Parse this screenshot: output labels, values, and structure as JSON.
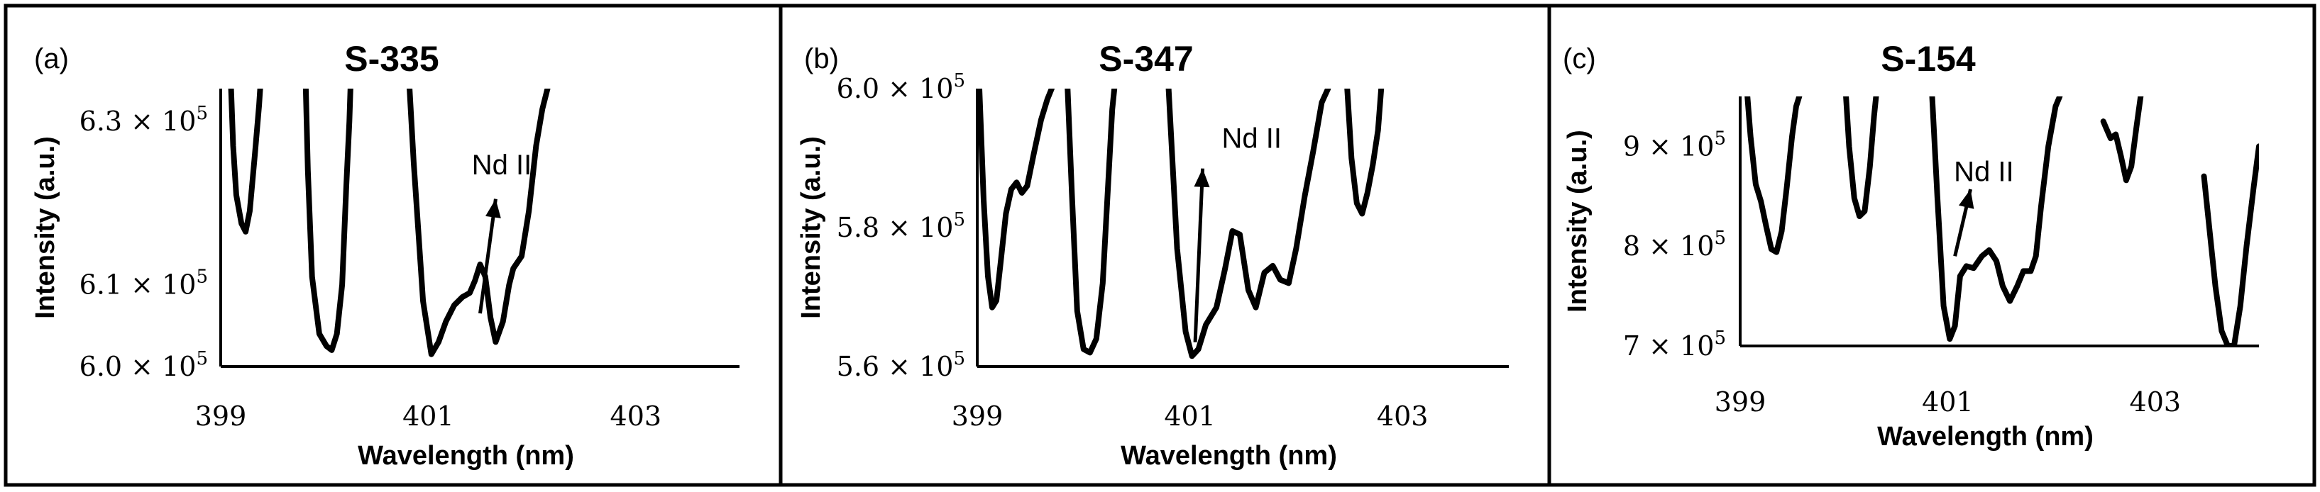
{
  "chart_data": [
    {
      "type": "line",
      "panel_label": "(a)",
      "title": "S-335",
      "xlabel": "Wavelength (nm)",
      "ylabel": "Intensity (a.u.)",
      "xlim": [
        399,
        404
      ],
      "ylim": [
        600000,
        634000
      ],
      "x_ticks": [
        "399",
        "401",
        "403"
      ],
      "x_tick_values": [
        399,
        401,
        403
      ],
      "y_ticks": [
        {
          "value": 600000,
          "mantissa": "6.0",
          "exp": "5"
        },
        {
          "value": 610000,
          "mantissa": "6.1",
          "exp": "5"
        },
        {
          "value": 630000,
          "mantissa": "6.3",
          "exp": "5"
        }
      ],
      "annotation": {
        "text": "Nd II",
        "arrow_from": [
          401.5,
          606500
        ],
        "arrow_to": [
          401.65,
          620500
        ],
        "text_at": [
          401.42,
          623500
        ]
      },
      "series": [
        {
          "x": [
            399.1,
            399.12,
            399.15,
            399.2,
            399.24,
            399.28,
            399.33,
            399.37,
            399.38
          ],
          "y": [
            634000,
            627000,
            621000,
            617500,
            616500,
            619000,
            626000,
            632000,
            634000
          ]
        },
        {
          "x": [
            399.82,
            399.84,
            399.88,
            399.95,
            400.02,
            400.07,
            400.12,
            400.17,
            400.21,
            400.24,
            400.25
          ],
          "y": [
            634000,
            624000,
            611000,
            604000,
            602500,
            602000,
            604000,
            610000,
            622000,
            630000,
            634000
          ]
        },
        {
          "x": [
            400.82,
            400.86,
            400.95,
            401.03,
            401.1,
            401.17,
            401.25,
            401.33,
            401.4,
            401.45,
            401.5,
            401.55,
            401.6,
            401.65,
            401.72,
            401.78,
            401.82,
            401.9,
            401.97,
            402.04,
            402.1,
            402.15
          ],
          "y": [
            634000,
            625000,
            608000,
            601500,
            603000,
            605500,
            607500,
            608500,
            609000,
            610500,
            612500,
            611000,
            606000,
            603000,
            605500,
            610000,
            612000,
            613500,
            619000,
            627000,
            631500,
            634000
          ]
        }
      ]
    },
    {
      "type": "line",
      "panel_label": "(b)",
      "title": "S-347",
      "xlabel": "Wavelength (nm)",
      "ylabel": "Intensity (a.u.)",
      "xlim": [
        399,
        404
      ],
      "ylim": [
        560000,
        600000
      ],
      "x_ticks": [
        "399",
        "401",
        "403"
      ],
      "x_tick_values": [
        399,
        401,
        403
      ],
      "y_ticks": [
        {
          "value": 560000,
          "mantissa": "5.6",
          "exp": "5"
        },
        {
          "value": 580000,
          "mantissa": "5.8",
          "exp": "5"
        },
        {
          "value": 600000,
          "mantissa": "6.0",
          "exp": "5"
        }
      ],
      "annotation": {
        "text": "Nd II",
        "arrow_from": [
          401.05,
          563500
        ],
        "arrow_to": [
          401.12,
          588500
        ],
        "text_at": [
          401.3,
          591500
        ]
      },
      "series": [
        {
          "x": [
            399.02,
            399.06,
            399.1,
            399.14,
            399.18,
            399.22,
            399.27,
            399.32,
            399.37,
            399.42,
            399.47,
            399.53,
            399.6,
            399.66,
            399.7
          ],
          "y": [
            600000,
            584000,
            573000,
            568500,
            569500,
            575000,
            582000,
            585500,
            586500,
            585000,
            586000,
            590500,
            595500,
            598500,
            600000
          ]
        },
        {
          "x": [
            399.85,
            399.89,
            399.94,
            400.0,
            400.06,
            400.12,
            400.18,
            400.23,
            400.27,
            400.29
          ],
          "y": [
            600000,
            585000,
            568000,
            562500,
            562000,
            564000,
            572000,
            586000,
            597000,
            600000
          ]
        },
        {
          "x": [
            400.8,
            400.88,
            400.96,
            401.02,
            401.08,
            401.15,
            401.25,
            401.33,
            401.4,
            401.47,
            401.55,
            401.62,
            401.7,
            401.78,
            401.85,
            401.93,
            402.0,
            402.08,
            402.16,
            402.24,
            402.3
          ],
          "y": [
            600000,
            577000,
            565000,
            561500,
            562500,
            566000,
            568500,
            574000,
            579500,
            579000,
            571000,
            568500,
            573500,
            574500,
            572500,
            572000,
            577000,
            584500,
            591000,
            598000,
            600000
          ]
        },
        {
          "x": [
            402.48,
            402.52,
            402.57,
            402.62,
            402.67,
            402.72,
            402.77,
            402.8
          ],
          "y": [
            600000,
            590000,
            583500,
            582000,
            585000,
            589000,
            594000,
            600000
          ]
        }
      ]
    },
    {
      "type": "line",
      "panel_label": "(c)",
      "title": "S-154",
      "xlabel": "Wavelength (nm)",
      "ylabel": "Intensity (a.u.)",
      "xlim": [
        399,
        404
      ],
      "ylim": [
        700000,
        950000
      ],
      "x_ticks": [
        "399",
        "401",
        "403"
      ],
      "x_tick_values": [
        399,
        401,
        403
      ],
      "y_ticks": [
        {
          "value": 700000,
          "mantissa": "7",
          "exp": "5"
        },
        {
          "value": 800000,
          "mantissa": "8",
          "exp": "5"
        },
        {
          "value": 900000,
          "mantissa": "9",
          "exp": "5"
        }
      ],
      "annotation": {
        "text": "Nd II",
        "arrow_from": [
          401.07,
          790000
        ],
        "arrow_to": [
          401.22,
          857000
        ],
        "text_at": [
          401.06,
          865000
        ]
      },
      "series": [
        {
          "x": [
            399.07,
            399.1,
            399.15,
            399.2,
            399.25,
            399.3,
            399.35,
            399.4,
            399.45,
            399.5,
            399.54,
            399.57
          ],
          "y": [
            950000,
            910000,
            862000,
            845000,
            820000,
            797000,
            794000,
            815000,
            860000,
            910000,
            940000,
            950000
          ]
        },
        {
          "x": [
            400.02,
            400.05,
            400.1,
            400.15,
            400.2,
            400.25,
            400.29,
            400.31
          ],
          "y": [
            950000,
            900000,
            848000,
            830000,
            835000,
            880000,
            930000,
            950000
          ]
        },
        {
          "x": [
            400.85,
            400.9,
            400.96,
            401.02,
            401.07,
            401.12,
            401.18,
            401.25,
            401.33,
            401.4,
            401.47,
            401.53,
            401.6,
            401.67,
            401.73,
            401.8,
            401.85,
            401.9,
            401.97,
            402.04,
            402.08
          ],
          "y": [
            950000,
            850000,
            740000,
            707000,
            720000,
            770000,
            780000,
            778000,
            790000,
            796000,
            785000,
            760000,
            745000,
            760000,
            775000,
            775000,
            790000,
            840000,
            900000,
            940000,
            950000
          ]
        },
        {
          "x": [
            402.5,
            402.52,
            402.57,
            402.62,
            402.67,
            402.72,
            402.77,
            402.82,
            402.86
          ],
          "y": [
            925000,
            920000,
            908000,
            912000,
            890000,
            866000,
            880000,
            920000,
            950000
          ]
        },
        {
          "x": [
            403.47,
            403.52,
            403.58,
            403.64,
            403.7,
            403.76,
            403.82,
            403.88,
            403.95,
            404.0
          ],
          "y": [
            870000,
            820000,
            760000,
            715000,
            700000,
            700000,
            740000,
            800000,
            860000,
            900000
          ]
        }
      ]
    }
  ]
}
